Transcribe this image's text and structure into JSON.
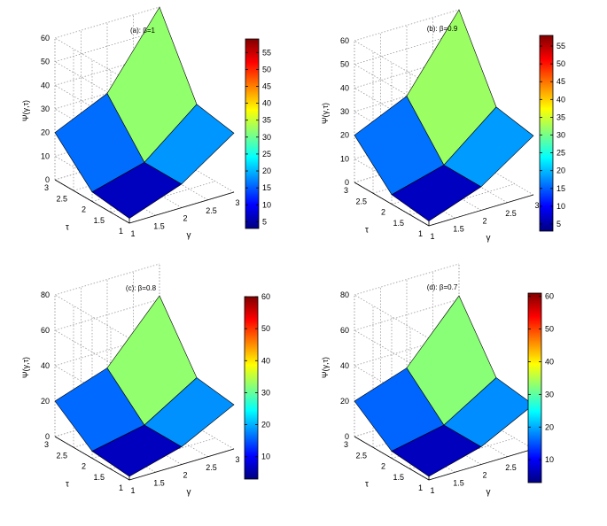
{
  "chart_data": [
    {
      "type": "surface",
      "title": "(a):  β=1",
      "xlabel": "γ",
      "ylabel": "τ",
      "zlabel": "Ψ(γ,τ)",
      "x": [
        1,
        2,
        3
      ],
      "y": [
        1,
        2,
        3
      ],
      "z": [
        [
          2,
          10,
          25
        ],
        [
          4,
          10,
          28
        ],
        [
          20,
          30,
          60
        ]
      ],
      "xticks": [
        "1",
        "1.5",
        "2",
        "2.5",
        "3"
      ],
      "yticks": [
        "1",
        "1.5",
        "2",
        "2.5",
        "3"
      ],
      "zlim": [
        0,
        60
      ],
      "zticks": [
        "0",
        "10",
        "20",
        "30",
        "40",
        "50",
        "60"
      ],
      "colorbar": {
        "range": [
          3,
          59
        ],
        "ticks": [
          "5",
          "10",
          "15",
          "20",
          "25",
          "30",
          "35",
          "40",
          "45",
          "50",
          "55"
        ]
      }
    },
    {
      "type": "surface",
      "title": "(b):  β=0.9",
      "xlabel": "γ",
      "ylabel": "τ",
      "zlabel": "Ψ(γ,τ)",
      "x": [
        1,
        2,
        3
      ],
      "y": [
        1,
        2,
        3
      ],
      "z": [
        [
          2,
          10,
          25
        ],
        [
          4,
          10,
          28
        ],
        [
          20,
          30,
          60
        ]
      ],
      "xticks": [
        "1",
        "1.5",
        "2",
        "2.5",
        "3"
      ],
      "yticks": [
        "1",
        "1.5",
        "2",
        "2.5",
        "3"
      ],
      "zlim": [
        0,
        60
      ],
      "zticks": [
        "0",
        "10",
        "20",
        "30",
        "40",
        "50",
        "60"
      ],
      "colorbar": {
        "range": [
          3,
          58
        ],
        "ticks": [
          "5",
          "10",
          "15",
          "20",
          "25",
          "30",
          "35",
          "40",
          "45",
          "50",
          "55"
        ]
      }
    },
    {
      "type": "surface",
      "title": "(c):  β=0.8",
      "xlabel": "γ",
      "ylabel": "τ",
      "zlabel": "Ψ(γ,τ)",
      "x": [
        1,
        2,
        3
      ],
      "y": [
        1,
        2,
        3
      ],
      "z": [
        [
          2,
          10,
          25
        ],
        [
          4,
          10,
          28
        ],
        [
          20,
          30,
          62
        ]
      ],
      "xticks": [
        "1",
        "1.5",
        "2",
        "2.5",
        "3"
      ],
      "yticks": [
        "1",
        "1.5",
        "2",
        "2.5",
        "3"
      ],
      "zlim": [
        0,
        80
      ],
      "zticks": [
        "0",
        "20",
        "40",
        "60",
        "80"
      ],
      "colorbar": {
        "range": [
          3,
          60
        ],
        "ticks": [
          "10",
          "20",
          "30",
          "40",
          "50",
          "60"
        ]
      }
    },
    {
      "type": "surface",
      "title": "(d):  β=0.7",
      "xlabel": "γ",
      "ylabel": "τ",
      "zlabel": "Ψ(γ,τ)",
      "x": [
        1,
        2,
        3
      ],
      "y": [
        1,
        2,
        3
      ],
      "z": [
        [
          2,
          10,
          25
        ],
        [
          4,
          10,
          28
        ],
        [
          20,
          30,
          62
        ]
      ],
      "xticks": [
        "1",
        "1.5",
        "2",
        "2.5",
        "3"
      ],
      "yticks": [
        "1",
        "1.5",
        "2",
        "2.5",
        "3"
      ],
      "zlim": [
        0,
        80
      ],
      "zticks": [
        "0",
        "20",
        "40",
        "60",
        "80"
      ],
      "colorbar": {
        "range": [
          3,
          61
        ],
        "ticks": [
          "10",
          "20",
          "30",
          "40",
          "50",
          "60"
        ]
      }
    }
  ],
  "colors": {
    "axis": "#000000",
    "grid": "#9a9a9a",
    "edge": "#000000"
  }
}
